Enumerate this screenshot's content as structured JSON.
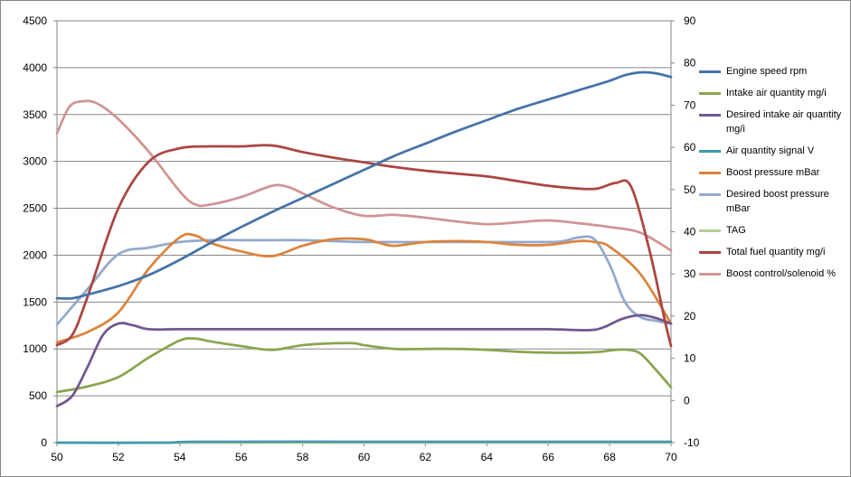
{
  "chart_data": {
    "type": "line",
    "title": "",
    "xlabel": "",
    "ylabel": "",
    "y2label": "",
    "xlim": [
      50,
      70
    ],
    "ylim": [
      0,
      4500
    ],
    "y2lim": [
      -10,
      90
    ],
    "x_ticks": [
      "50",
      "52",
      "54",
      "56",
      "58",
      "60",
      "62",
      "64",
      "66",
      "68",
      "70"
    ],
    "y_ticks": [
      "0",
      "500",
      "1000",
      "1500",
      "2000",
      "2500",
      "3000",
      "3500",
      "4000",
      "4500"
    ],
    "y2_ticks": [
      "-10",
      "0",
      "10",
      "20",
      "30",
      "40",
      "50",
      "60",
      "70",
      "80",
      "90"
    ],
    "grid": "horizontal",
    "legend_position": "right",
    "series": [
      {
        "name": "Engine speed rpm",
        "color": "#4572a7",
        "axis": "left",
        "points": [
          [
            50,
            1540
          ],
          [
            50.5,
            1540
          ],
          [
            51,
            1580
          ],
          [
            52,
            1670
          ],
          [
            53,
            1790
          ],
          [
            54,
            1950
          ],
          [
            55,
            2130
          ],
          [
            56,
            2300
          ],
          [
            57,
            2460
          ],
          [
            58,
            2610
          ],
          [
            59,
            2760
          ],
          [
            60,
            2910
          ],
          [
            61,
            3060
          ],
          [
            62,
            3190
          ],
          [
            63,
            3320
          ],
          [
            64,
            3440
          ],
          [
            65,
            3560
          ],
          [
            66,
            3660
          ],
          [
            67,
            3760
          ],
          [
            68,
            3860
          ],
          [
            68.5,
            3920
          ],
          [
            69,
            3950
          ],
          [
            69.5,
            3940
          ],
          [
            70,
            3900
          ]
        ]
      },
      {
        "name": "Intake air quantity mg/i",
        "color": "#89a54e",
        "axis": "left",
        "points": [
          [
            50,
            540
          ],
          [
            51,
            600
          ],
          [
            52,
            700
          ],
          [
            53,
            910
          ],
          [
            54,
            1090
          ],
          [
            54.5,
            1110
          ],
          [
            55,
            1080
          ],
          [
            56,
            1030
          ],
          [
            57,
            990
          ],
          [
            58,
            1040
          ],
          [
            59,
            1060
          ],
          [
            59.7,
            1060
          ],
          [
            60,
            1040
          ],
          [
            61,
            1000
          ],
          [
            62,
            1000
          ],
          [
            63,
            1000
          ],
          [
            64,
            990
          ],
          [
            65,
            970
          ],
          [
            66,
            960
          ],
          [
            67,
            960
          ],
          [
            67.7,
            970
          ],
          [
            68.2,
            990
          ],
          [
            68.6,
            990
          ],
          [
            69,
            950
          ],
          [
            69.5,
            780
          ],
          [
            70,
            590
          ]
        ]
      },
      {
        "name": "Desired intake air quantity mg/i",
        "color": "#71588f",
        "axis": "left",
        "points": [
          [
            50,
            390
          ],
          [
            50.5,
            500
          ],
          [
            51,
            810
          ],
          [
            51.5,
            1150
          ],
          [
            52,
            1270
          ],
          [
            52.5,
            1250
          ],
          [
            53,
            1210
          ],
          [
            54,
            1210
          ],
          [
            56,
            1210
          ],
          [
            58,
            1210
          ],
          [
            60,
            1210
          ],
          [
            62,
            1210
          ],
          [
            64,
            1210
          ],
          [
            66,
            1210
          ],
          [
            67.3,
            1200
          ],
          [
            67.8,
            1230
          ],
          [
            68.4,
            1320
          ],
          [
            69,
            1360
          ],
          [
            69.5,
            1330
          ],
          [
            70,
            1270
          ]
        ]
      },
      {
        "name": "Air quantity signal V",
        "color": "#4198af",
        "axis": "left",
        "points": [
          [
            50,
            0
          ],
          [
            53.5,
            0
          ],
          [
            54.5,
            10
          ],
          [
            60,
            10
          ],
          [
            65,
            10
          ],
          [
            70,
            10
          ]
        ]
      },
      {
        "name": "Boost pressure mBar",
        "color": "#db843d",
        "axis": "left",
        "points": [
          [
            50,
            1070
          ],
          [
            51,
            1180
          ],
          [
            52,
            1390
          ],
          [
            53,
            1860
          ],
          [
            54,
            2190
          ],
          [
            54.5,
            2210
          ],
          [
            55,
            2130
          ],
          [
            56,
            2040
          ],
          [
            57,
            1990
          ],
          [
            58,
            2100
          ],
          [
            59,
            2170
          ],
          [
            60,
            2170
          ],
          [
            60.5,
            2130
          ],
          [
            61,
            2100
          ],
          [
            62,
            2140
          ],
          [
            63,
            2150
          ],
          [
            64,
            2140
          ],
          [
            65,
            2110
          ],
          [
            66,
            2110
          ],
          [
            67,
            2150
          ],
          [
            67.5,
            2140
          ],
          [
            68,
            2090
          ],
          [
            69,
            1800
          ],
          [
            70,
            1270
          ]
        ]
      },
      {
        "name": "Desired boost pressure mBar",
        "color": "#93a9cf",
        "axis": "left",
        "points": [
          [
            50,
            1260
          ],
          [
            51,
            1640
          ],
          [
            52,
            2010
          ],
          [
            53,
            2080
          ],
          [
            54,
            2140
          ],
          [
            55,
            2160
          ],
          [
            56,
            2160
          ],
          [
            57,
            2160
          ],
          [
            58,
            2160
          ],
          [
            59,
            2150
          ],
          [
            60,
            2140
          ],
          [
            62,
            2140
          ],
          [
            64,
            2140
          ],
          [
            66,
            2140
          ],
          [
            66.5,
            2150
          ],
          [
            67,
            2190
          ],
          [
            67.5,
            2170
          ],
          [
            68,
            1900
          ],
          [
            68.5,
            1500
          ],
          [
            69,
            1340
          ],
          [
            69.5,
            1300
          ],
          [
            70,
            1270
          ]
        ]
      },
      {
        "name": "TAG",
        "color": "#b9cd96",
        "axis": "left",
        "points": [
          [
            50,
            0
          ],
          [
            70,
            0
          ]
        ]
      },
      {
        "name": "Total fuel quantity mg/i",
        "color": "#aa4643",
        "axis": "left",
        "points": [
          [
            50,
            1040
          ],
          [
            50.5,
            1150
          ],
          [
            51,
            1560
          ],
          [
            52,
            2500
          ],
          [
            53,
            3000
          ],
          [
            54,
            3140
          ],
          [
            55,
            3160
          ],
          [
            56,
            3160
          ],
          [
            57,
            3170
          ],
          [
            58,
            3100
          ],
          [
            59,
            3040
          ],
          [
            60,
            2990
          ],
          [
            61,
            2940
          ],
          [
            62,
            2900
          ],
          [
            63,
            2870
          ],
          [
            64,
            2840
          ],
          [
            65,
            2790
          ],
          [
            66,
            2740
          ],
          [
            67,
            2710
          ],
          [
            67.6,
            2710
          ],
          [
            68.2,
            2770
          ],
          [
            68.7,
            2730
          ],
          [
            69.3,
            2050
          ],
          [
            69.8,
            1300
          ],
          [
            70,
            1030
          ]
        ]
      },
      {
        "name": "Boost control/solenoid %",
        "color": "#d09493",
        "axis": "left",
        "points": [
          [
            50,
            3300
          ],
          [
            50.4,
            3580
          ],
          [
            50.8,
            3640
          ],
          [
            51.3,
            3620
          ],
          [
            52,
            3450
          ],
          [
            53,
            3100
          ],
          [
            54,
            2680
          ],
          [
            54.5,
            2540
          ],
          [
            55,
            2540
          ],
          [
            56,
            2620
          ],
          [
            57,
            2740
          ],
          [
            57.5,
            2730
          ],
          [
            58,
            2660
          ],
          [
            59,
            2510
          ],
          [
            60,
            2420
          ],
          [
            61,
            2430
          ],
          [
            62,
            2400
          ],
          [
            63,
            2360
          ],
          [
            64,
            2330
          ],
          [
            65,
            2350
          ],
          [
            66,
            2370
          ],
          [
            67,
            2340
          ],
          [
            68,
            2300
          ],
          [
            69,
            2240
          ],
          [
            70,
            2050
          ]
        ]
      }
    ]
  }
}
